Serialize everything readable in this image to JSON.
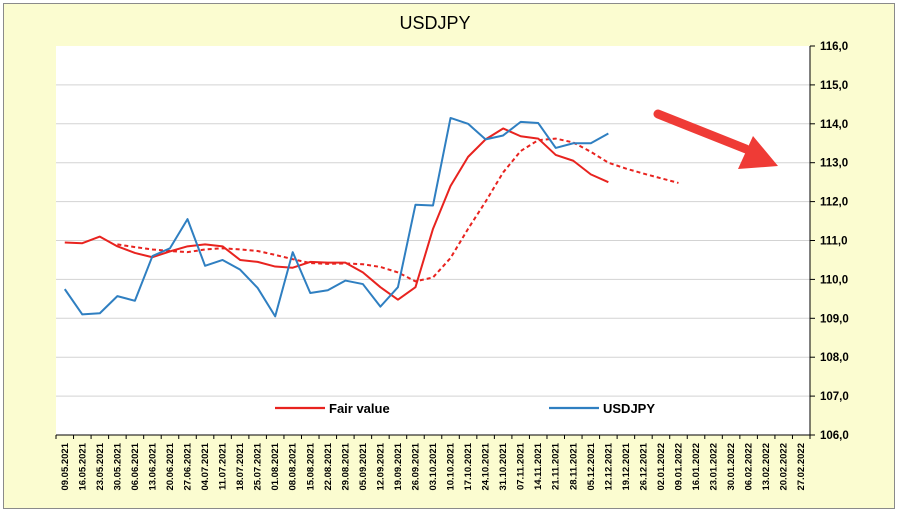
{
  "chart_data": {
    "type": "line",
    "title": "USDJPY",
    "ylim": [
      106,
      116
    ],
    "y_ticks": [
      "106,0",
      "107,0",
      "108,0",
      "109,0",
      "110,0",
      "111,0",
      "112,0",
      "113,0",
      "114,0",
      "115,0",
      "116,0"
    ],
    "y_tick_values": [
      106,
      107,
      108,
      109,
      110,
      111,
      112,
      113,
      114,
      115,
      116
    ],
    "y_axis_side": "right",
    "grid": "horizontal",
    "categories": [
      "09.05.2021",
      "16.05.2021",
      "23.05.2021",
      "30.05.2021",
      "06.06.2021",
      "13.06.2021",
      "20.06.2021",
      "27.06.2021",
      "04.07.2021",
      "11.07.2021",
      "18.07.2021",
      "25.07.2021",
      "01.08.2021",
      "08.08.2021",
      "15.08.2021",
      "22.08.2021",
      "29.08.2021",
      "05.09.2021",
      "12.09.2021",
      "19.09.2021",
      "26.09.2021",
      "03.10.2021",
      "10.10.2021",
      "17.10.2021",
      "24.10.2021",
      "31.10.2021",
      "07.11.2021",
      "14.11.2021",
      "21.11.2021",
      "28.11.2021",
      "05.12.2021",
      "12.12.2021",
      "19.12.2021",
      "26.12.2021",
      "02.01.2022",
      "09.01.2022",
      "16.01.2022",
      "23.01.2022",
      "30.01.2022",
      "06.02.2022",
      "13.02.2022",
      "20.02.2022",
      "27.02.2022"
    ],
    "series": [
      {
        "name": "Fair value",
        "color": "#e8231f",
        "style": "solid",
        "values": [
          110.95,
          110.93,
          111.1,
          110.85,
          110.68,
          110.57,
          110.72,
          110.85,
          110.9,
          110.85,
          110.5,
          110.45,
          110.33,
          110.3,
          110.45,
          110.43,
          110.43,
          110.18,
          109.8,
          109.48,
          109.8,
          111.3,
          112.4,
          113.15,
          113.6,
          113.88,
          113.68,
          113.62,
          113.2,
          113.05,
          112.7,
          112.5,
          null,
          null,
          null,
          null,
          null,
          null,
          null,
          null,
          null,
          null,
          null
        ]
      },
      {
        "name": "",
        "color": "#e8231f",
        "style": "dashed",
        "values": [
          null,
          null,
          null,
          110.9,
          110.83,
          110.77,
          110.73,
          110.7,
          110.77,
          110.8,
          110.77,
          110.73,
          110.63,
          110.52,
          110.42,
          110.4,
          110.41,
          110.39,
          110.32,
          110.18,
          109.95,
          110.05,
          110.55,
          111.3,
          112.0,
          112.75,
          113.3,
          113.58,
          113.62,
          113.52,
          113.28,
          113.0,
          112.85,
          112.72,
          112.6,
          112.48,
          null,
          null,
          null,
          null,
          null,
          null,
          null
        ]
      },
      {
        "name": "USDJPY",
        "color": "#2f7fc1",
        "style": "solid",
        "values": [
          109.75,
          109.1,
          109.13,
          109.57,
          109.45,
          110.6,
          110.8,
          111.55,
          110.35,
          110.5,
          110.25,
          109.78,
          109.05,
          110.7,
          109.65,
          109.72,
          109.97,
          109.88,
          109.3,
          109.8,
          111.92,
          111.9,
          114.15,
          114.0,
          113.6,
          113.7,
          114.05,
          114.02,
          113.38,
          113.5,
          113.5,
          113.75,
          null,
          null,
          null,
          null,
          null,
          null,
          null,
          null,
          null,
          null,
          null
        ]
      }
    ],
    "annotation": {
      "type": "arrow",
      "color": "#ef3b36",
      "direction": "down-right"
    }
  }
}
